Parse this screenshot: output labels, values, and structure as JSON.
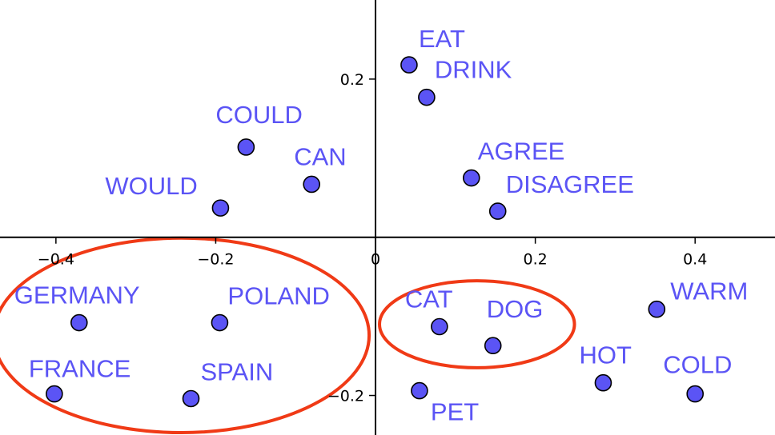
{
  "chart_data": {
    "type": "scatter",
    "title": "",
    "xlabel": "",
    "ylabel": "",
    "xlim": [
      -0.47,
      0.5
    ],
    "ylim": [
      -0.25,
      0.3
    ],
    "grid": false,
    "x_ticks": [
      {
        "value": -0.4,
        "label": "−0.4"
      },
      {
        "value": -0.2,
        "label": "−0.2"
      },
      {
        "value": 0,
        "label": "0"
      },
      {
        "value": 0.2,
        "label": "0.2"
      },
      {
        "value": 0.4,
        "label": "0.4"
      }
    ],
    "y_ticks": [
      {
        "value": 0.2,
        "label": "0.2"
      },
      {
        "value": -0.2,
        "label": "−0.2"
      }
    ],
    "points": [
      {
        "label": "EAT",
        "x": 0.042,
        "y": 0.218
      },
      {
        "label": "DRINK",
        "x": 0.064,
        "y": 0.177
      },
      {
        "label": "AGREE",
        "x": 0.12,
        "y": 0.075
      },
      {
        "label": "DISAGREE",
        "x": 0.153,
        "y": 0.033
      },
      {
        "label": "COULD",
        "x": -0.162,
        "y": 0.114
      },
      {
        "label": "CAN",
        "x": -0.08,
        "y": 0.067
      },
      {
        "label": "WOULD",
        "x": -0.194,
        "y": 0.037
      },
      {
        "label": "GERMANY",
        "x": -0.371,
        "y": -0.108
      },
      {
        "label": "POLAND",
        "x": -0.195,
        "y": -0.108
      },
      {
        "label": "FRANCE",
        "x": -0.402,
        "y": -0.198
      },
      {
        "label": "SPAIN",
        "x": -0.231,
        "y": -0.204
      },
      {
        "label": "CAT",
        "x": 0.08,
        "y": -0.113
      },
      {
        "label": "DOG",
        "x": 0.147,
        "y": -0.137
      },
      {
        "label": "WARM",
        "x": 0.352,
        "y": -0.091
      },
      {
        "label": "HOT",
        "x": 0.285,
        "y": -0.184
      },
      {
        "label": "COLD",
        "x": 0.4,
        "y": -0.198
      },
      {
        "label": "PET",
        "x": 0.055,
        "y": -0.194
      }
    ],
    "clusters": [
      {
        "center_x": -0.243,
        "center_y": -0.124,
        "radius_x": 0.235,
        "radius_y": 0.123
      },
      {
        "center_x": 0.127,
        "center_y": -0.11,
        "radius_x": 0.122,
        "radius_y": 0.055
      }
    ],
    "colors": {
      "points": "#5b54f5",
      "labels": "#5b54f5",
      "clusters": "#f03a16",
      "axes": "#000000"
    }
  }
}
